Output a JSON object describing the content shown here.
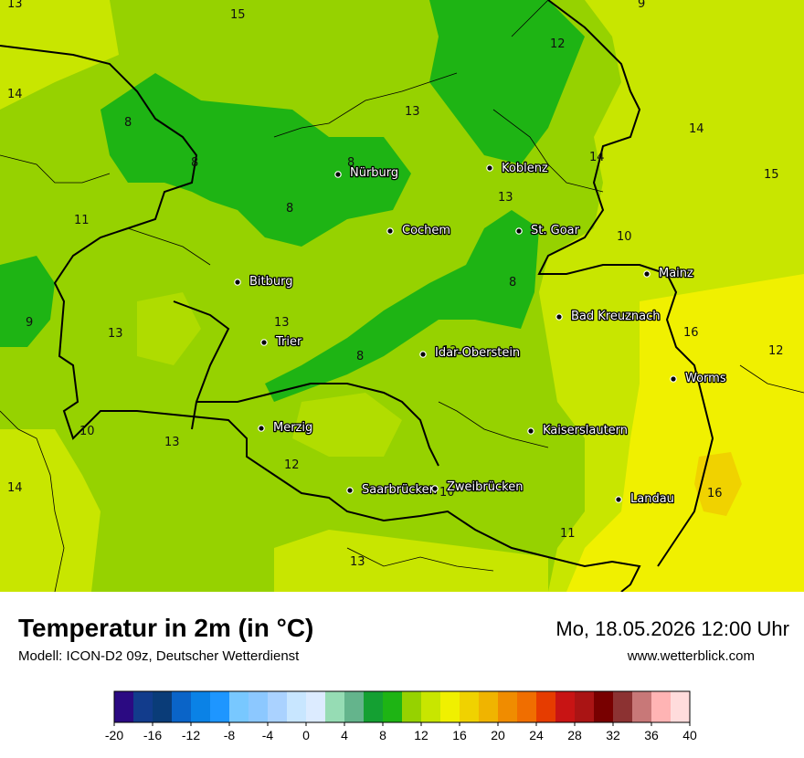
{
  "header": {
    "title": "Temperatur in 2m (in °C)",
    "model": "Modell: ICON-D2 09z, Deutscher Wetterdienst",
    "datetime": "Mo, 18.05.2026 12:00 Uhr",
    "website": "www.wetterblick.com"
  },
  "map": {
    "cities": [
      {
        "name": "Nürburg"
      },
      {
        "name": "Koblenz"
      },
      {
        "name": "Cochem"
      },
      {
        "name": "St. Goar"
      },
      {
        "name": "Bitburg"
      },
      {
        "name": "Mainz"
      },
      {
        "name": "Bad Kreuznach"
      },
      {
        "name": "Trier"
      },
      {
        "name": "Idar-Oberstein"
      },
      {
        "name": "Worms"
      },
      {
        "name": "Merzig"
      },
      {
        "name": "Kaiserslautern"
      },
      {
        "name": "Saarbrücken"
      },
      {
        "name": "Zweibrücken"
      },
      {
        "name": "Landau"
      }
    ],
    "isolines": [
      {
        "value": "13"
      },
      {
        "value": "15"
      },
      {
        "value": "9"
      },
      {
        "value": "12"
      },
      {
        "value": "14"
      },
      {
        "value": "8"
      },
      {
        "value": "13"
      },
      {
        "value": "8"
      },
      {
        "value": "8"
      },
      {
        "value": "14"
      },
      {
        "value": "14"
      },
      {
        "value": "15"
      },
      {
        "value": "13"
      },
      {
        "value": "8"
      },
      {
        "value": "11"
      },
      {
        "value": "10"
      },
      {
        "value": "8"
      },
      {
        "value": "9"
      },
      {
        "value": "13"
      },
      {
        "value": "16"
      },
      {
        "value": "12"
      },
      {
        "value": "8"
      },
      {
        "value": "12"
      },
      {
        "value": "13"
      },
      {
        "value": "10"
      },
      {
        "value": "13"
      },
      {
        "value": "12"
      },
      {
        "value": "14"
      },
      {
        "value": "10"
      },
      {
        "value": "16"
      },
      {
        "value": "11"
      },
      {
        "value": "13"
      }
    ]
  },
  "legend": {
    "colors": [
      "#2b0a82",
      "#123c8c",
      "#0a3c78",
      "#0a64c8",
      "#0a82e6",
      "#1e96ff",
      "#78c8ff",
      "#8cc8ff",
      "#aad2ff",
      "#c8e6ff",
      "#dcebff",
      "#96dcb4",
      "#64b48c",
      "#14a032",
      "#1eb414",
      "#96d200",
      "#c8e600",
      "#f0f000",
      "#f0d200",
      "#f0b400",
      "#f08c00",
      "#f06e00",
      "#e63c00",
      "#c81414",
      "#aa1414",
      "#780000",
      "#8c3232",
      "#c87878",
      "#ffb4b4",
      "#ffdcdc"
    ],
    "ticks": [
      "-20",
      "-16",
      "-12",
      "-8",
      "-4",
      "0",
      "4",
      "8",
      "12",
      "16",
      "20",
      "24",
      "28",
      "32",
      "36",
      "40"
    ]
  }
}
